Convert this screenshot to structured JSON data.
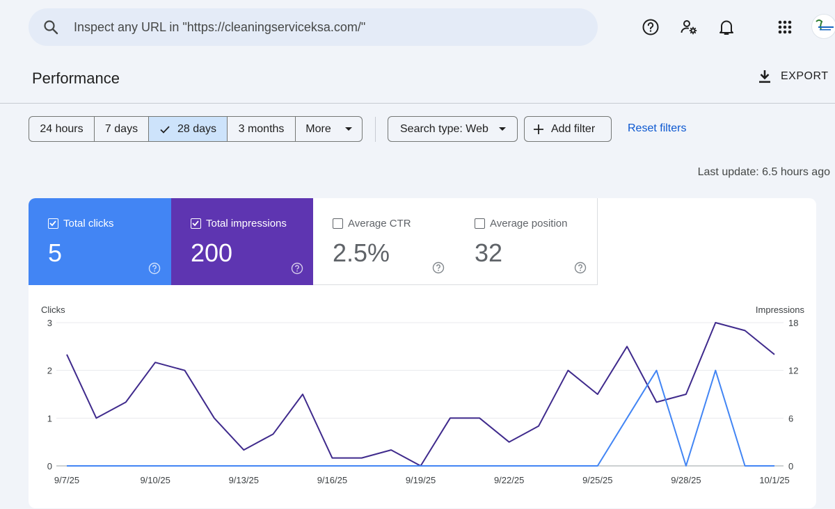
{
  "search": {
    "placeholder": "Inspect any URL in \"https://cleaningserviceksa.com/\""
  },
  "header_icons": [
    "help-icon",
    "manage-users-icon",
    "notifications-icon",
    "apps-grid-icon"
  ],
  "page": {
    "title": "Performance",
    "export_label": "EXPORT"
  },
  "date_ranges": {
    "items": [
      "24 hours",
      "7 days",
      "28 days",
      "3 months",
      "More"
    ],
    "selected": "28 days"
  },
  "filters": {
    "search_type": "Search type: Web",
    "add_filter": "Add filter",
    "reset": "Reset filters"
  },
  "last_update": "Last update: 6.5 hours ago",
  "metrics": [
    {
      "label": "Total clicks",
      "value": "5",
      "checked": true,
      "color": "#4285f4"
    },
    {
      "label": "Total impressions",
      "value": "200",
      "checked": true,
      "color": "#5e35b1"
    },
    {
      "label": "Average CTR",
      "value": "2.5%",
      "checked": false,
      "color": "#ffffff"
    },
    {
      "label": "Average position",
      "value": "32",
      "checked": false,
      "color": "#ffffff"
    }
  ],
  "chart_data": {
    "type": "line",
    "left_axis_label": "Clicks",
    "right_axis_label": "Impressions",
    "left_ticks": [
      "3",
      "2",
      "1",
      "0"
    ],
    "right_ticks": [
      "18",
      "12",
      "6",
      "0"
    ],
    "ylim_left": [
      0,
      3
    ],
    "ylim_right": [
      0,
      18
    ],
    "x_tick_labels": [
      "9/7/25",
      "9/10/25",
      "9/13/25",
      "9/16/25",
      "9/19/25",
      "9/22/25",
      "9/25/25",
      "9/28/25",
      "10/1/25"
    ],
    "x": [
      "9/7/25",
      "9/8/25",
      "9/9/25",
      "9/10/25",
      "9/11/25",
      "9/12/25",
      "9/13/25",
      "9/14/25",
      "9/15/25",
      "9/16/25",
      "9/17/25",
      "9/18/25",
      "9/19/25",
      "9/20/25",
      "9/21/25",
      "9/22/25",
      "9/23/25",
      "9/24/25",
      "9/25/25",
      "9/26/25",
      "9/27/25",
      "9/28/25",
      "9/29/25",
      "9/30/25",
      "10/1/25"
    ],
    "series": [
      {
        "name": "Clicks",
        "axis": "left",
        "color": "#4285f4",
        "values": [
          0,
          0,
          0,
          0,
          0,
          0,
          0,
          0,
          0,
          0,
          0,
          0,
          0,
          0,
          0,
          0,
          0,
          0,
          0,
          1,
          2,
          0,
          2,
          0,
          0
        ]
      },
      {
        "name": "Impressions",
        "axis": "right",
        "color": "#3f2a8c",
        "values": [
          14,
          6,
          8,
          13,
          12,
          6,
          2,
          4,
          9,
          1,
          1,
          2,
          0,
          6,
          6,
          3,
          5,
          12,
          9,
          15,
          8,
          9,
          18,
          17,
          14
        ]
      }
    ],
    "grid": true
  }
}
